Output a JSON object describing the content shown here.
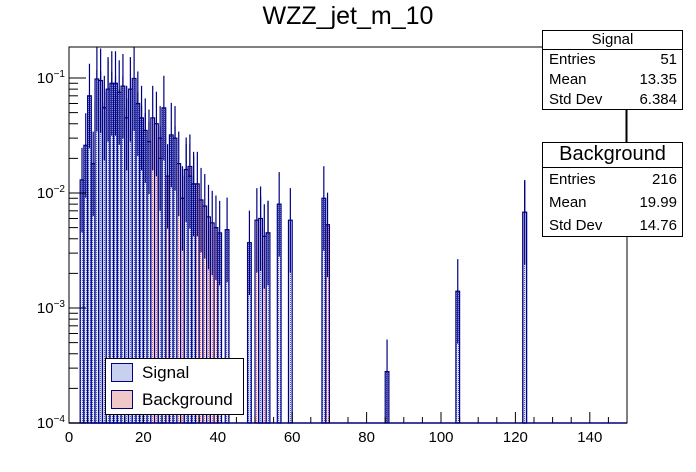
{
  "chart_data": {
    "type": "bar",
    "title": "WZZ_jet_m_10",
    "xlabel": "",
    "ylabel": "",
    "xlim": [
      0,
      150
    ],
    "ylim": [
      0.0001,
      0.186
    ],
    "yscale": "log",
    "bin_width": 1,
    "x_ticks": [
      "0",
      "20",
      "40",
      "60",
      "80",
      "100",
      "120",
      "140"
    ],
    "y_ticks": [
      {
        "base": "10",
        "exp": "−1",
        "value": 0.1
      },
      {
        "base": "10",
        "exp": "−2",
        "value": 0.01
      },
      {
        "base": "10",
        "exp": "−3",
        "value": 0.001
      },
      {
        "base": "10",
        "exp": "−4",
        "value": 0.0001
      }
    ],
    "series": [
      {
        "name": "Signal",
        "color": "#000080",
        "fill": "#c8d0f0",
        "bins": [
          [
            3,
            0.013
          ],
          [
            4,
            0.026
          ],
          [
            5,
            0.07
          ],
          [
            6,
            0.018
          ],
          [
            7,
            0.098
          ],
          [
            8,
            0.095
          ],
          [
            9,
            0.055
          ],
          [
            10,
            0.08
          ],
          [
            11,
            0.09
          ],
          [
            12,
            0.09
          ],
          [
            13,
            0.075
          ],
          [
            14,
            0.085
          ],
          [
            15,
            0.045
          ],
          [
            16,
            0.08
          ],
          [
            17,
            0.099
          ],
          [
            18,
            0.06
          ],
          [
            19,
            0.045
          ],
          [
            20,
            0.035
          ],
          [
            21,
            0.028
          ],
          [
            24,
            0.02
          ],
          [
            25,
            0.055
          ],
          [
            27,
            0.032
          ],
          [
            28,
            0.03
          ],
          [
            31,
            0.016
          ],
          [
            32,
            0.014
          ],
          [
            33,
            0.012
          ],
          [
            40,
            0.0045
          ],
          [
            42,
            0.0048
          ],
          [
            48,
            0.0037
          ],
          [
            51,
            0.006
          ],
          [
            53,
            0.0045
          ],
          [
            56,
            0.008
          ],
          [
            59,
            0.0058
          ],
          [
            68,
            0.009
          ],
          [
            85,
            0.00028
          ],
          [
            104,
            0.0014
          ],
          [
            122,
            0.0068
          ]
        ]
      },
      {
        "name": "Background",
        "color": "#000080",
        "fill": "#f0c8c8",
        "bins": [
          [
            6,
            0.0088
          ],
          [
            7,
            0.062
          ],
          [
            8,
            0.06
          ],
          [
            9,
            0.03
          ],
          [
            10,
            0.075
          ],
          [
            11,
            0.06
          ],
          [
            12,
            0.055
          ],
          [
            13,
            0.042
          ],
          [
            14,
            0.055
          ],
          [
            15,
            0.035
          ],
          [
            16,
            0.04
          ],
          [
            17,
            0.045
          ],
          [
            18,
            0.04
          ],
          [
            19,
            0.03
          ],
          [
            20,
            0.026
          ],
          [
            21,
            0.022
          ],
          [
            22,
            0.045
          ],
          [
            23,
            0.04
          ],
          [
            24,
            0.03
          ],
          [
            25,
            0.009
          ],
          [
            26,
            0.014
          ],
          [
            27,
            0.013
          ],
          [
            28,
            0.02
          ],
          [
            29,
            0.018
          ],
          [
            30,
            0.009
          ],
          [
            31,
            0.014
          ],
          [
            32,
            0.017
          ],
          [
            33,
            0.011
          ],
          [
            34,
            0.012
          ],
          [
            35,
            0.0087
          ],
          [
            36,
            0.0077
          ],
          [
            37,
            0.0062
          ],
          [
            38,
            0.0055
          ],
          [
            39,
            0.005
          ],
          [
            50,
            0.0058
          ],
          [
            51,
            0.0049
          ],
          [
            52,
            0.0042
          ],
          [
            53,
            0.0045
          ],
          [
            69,
            0.0053
          ],
          [
            122,
            0.0068
          ]
        ]
      }
    ],
    "legend": {
      "position": "bottom-left",
      "entries": [
        "Signal",
        "Background"
      ]
    }
  },
  "stats": {
    "signal": {
      "title": "Signal",
      "rows": [
        {
          "label": "Entries",
          "value": "51"
        },
        {
          "label": "Mean",
          "value": "13.35"
        },
        {
          "label": "Std Dev",
          "value": "6.384"
        }
      ]
    },
    "background": {
      "title": "Background",
      "rows": [
        {
          "label": "Entries",
          "value": "216"
        },
        {
          "label": "Mean",
          "value": "19.99"
        },
        {
          "label": "Std Dev",
          "value": "14.76"
        }
      ]
    }
  }
}
